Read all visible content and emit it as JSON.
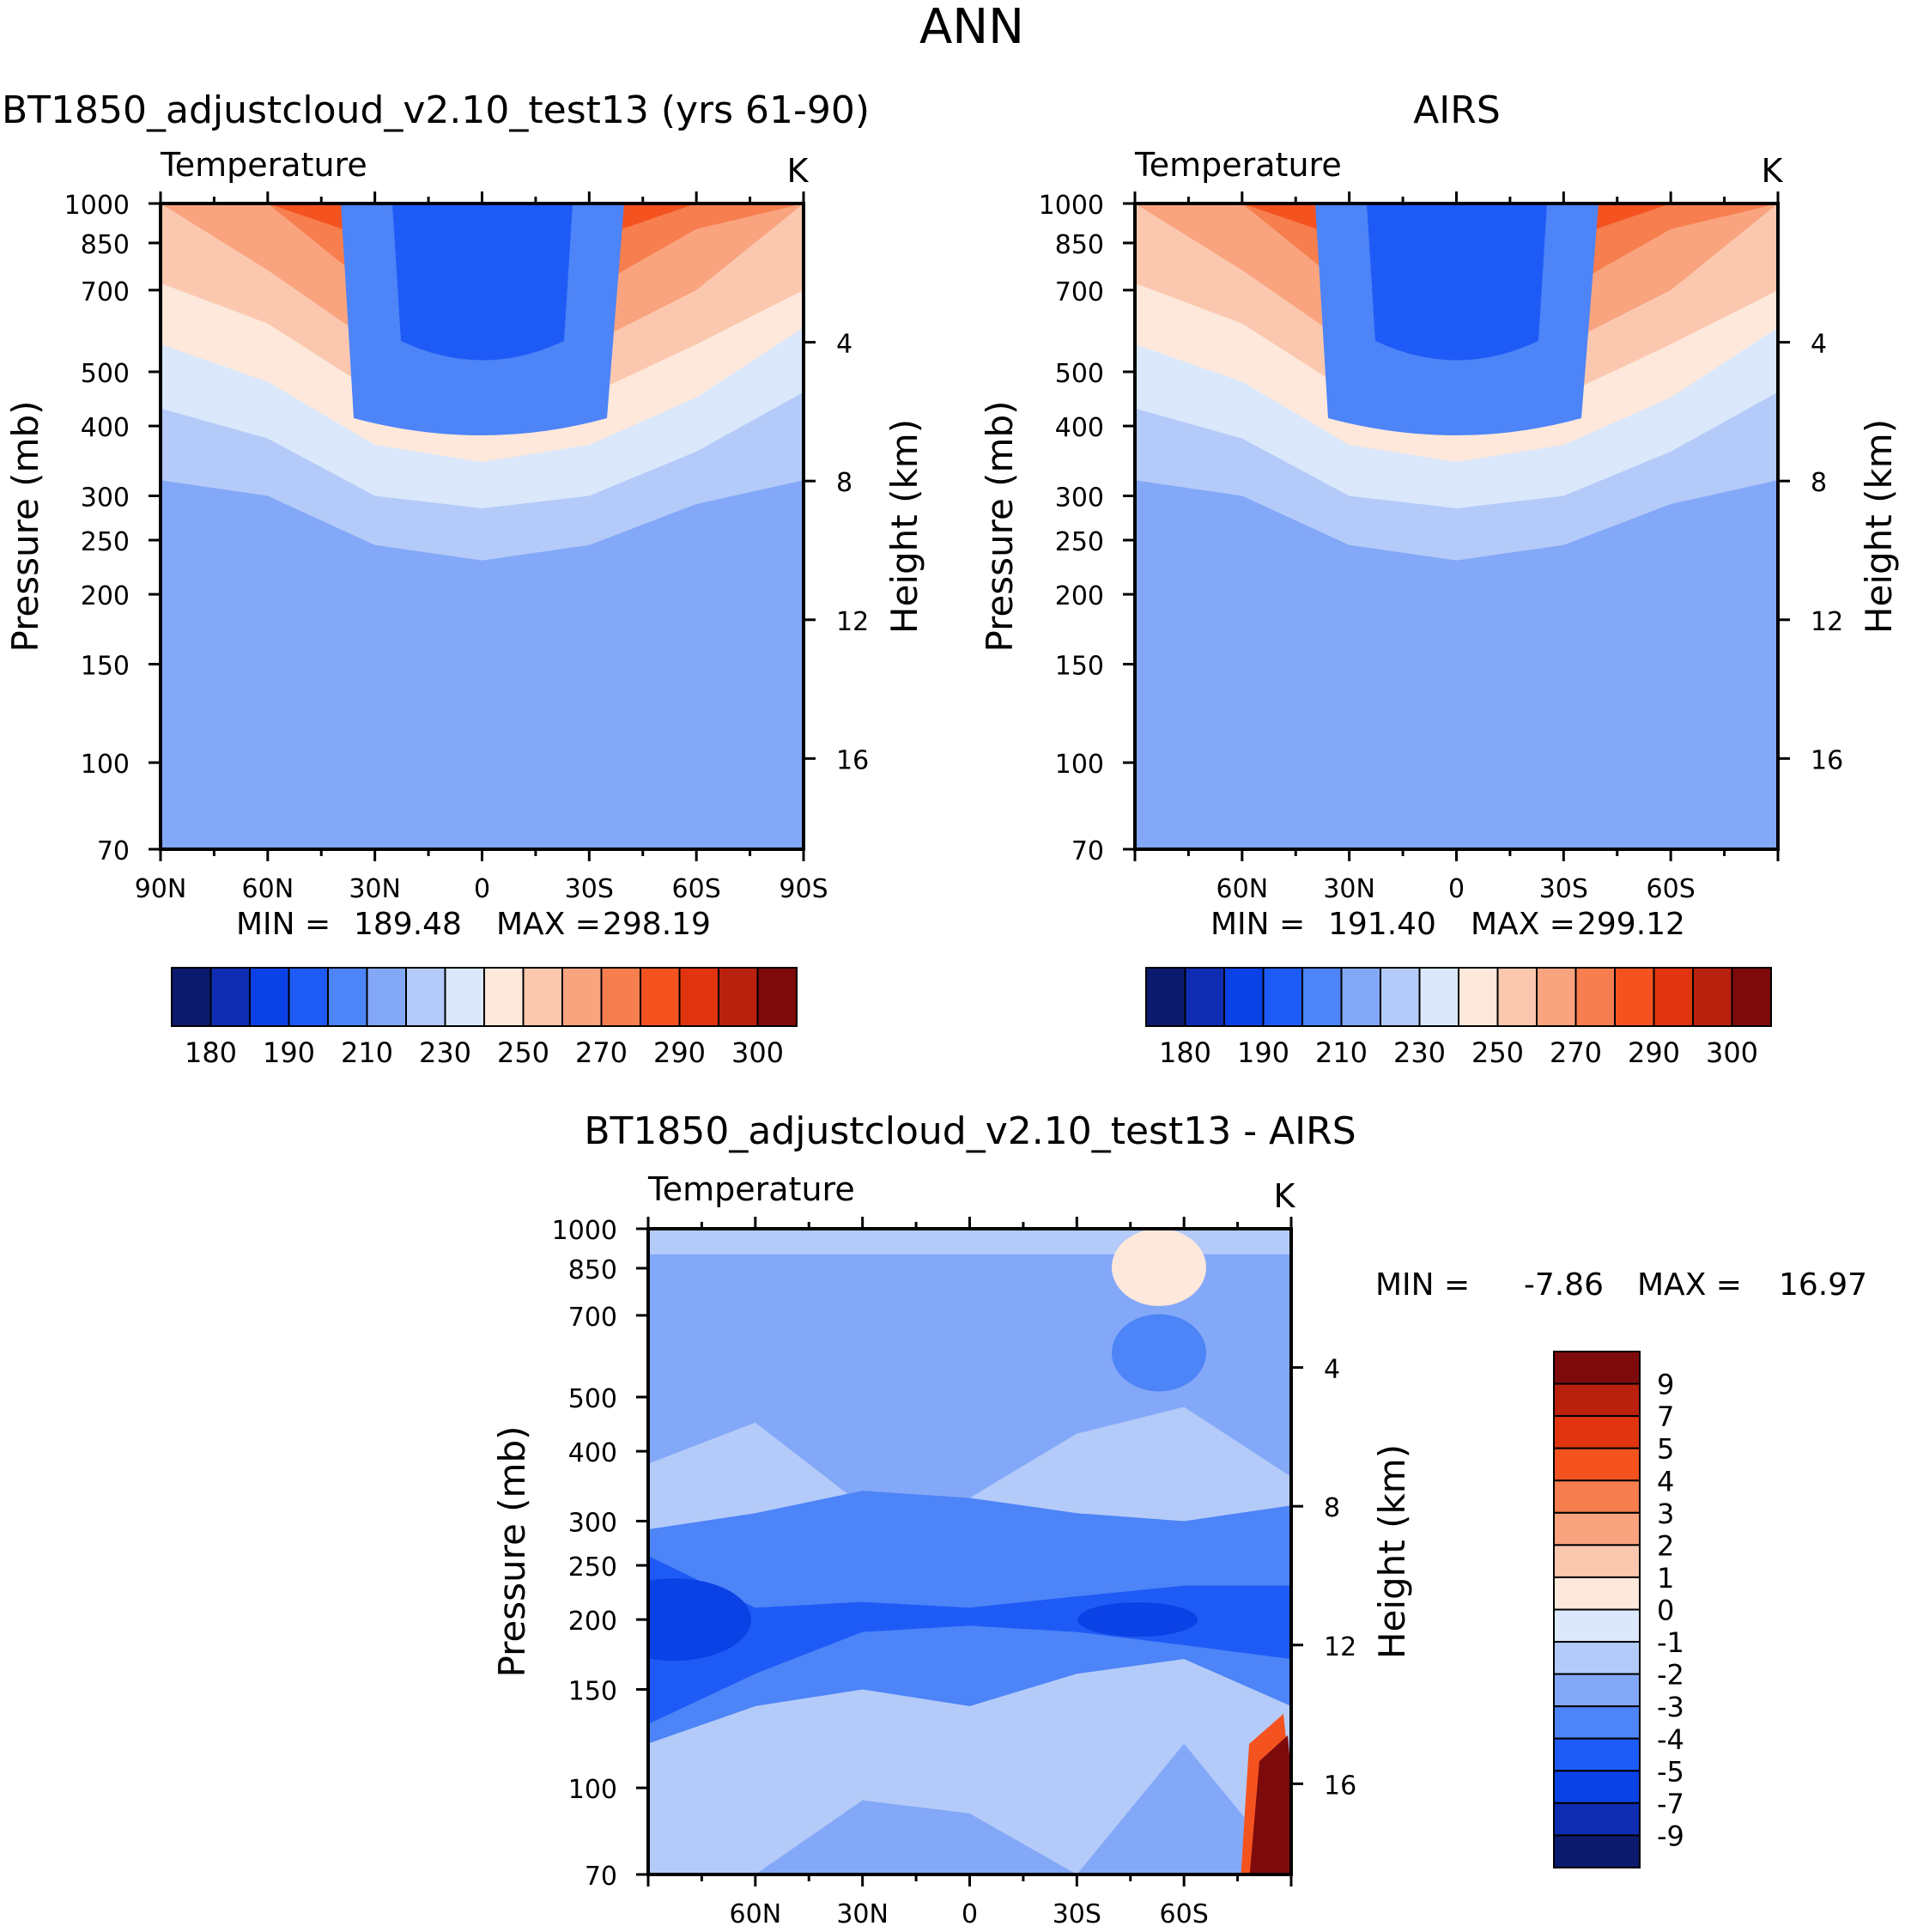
{
  "figure": {
    "title": "ANN"
  },
  "colors": {
    "abs_palette": [
      "#0c1a6e",
      "#0e2db2",
      "#0b42e6",
      "#1e5bf6",
      "#4d84f7",
      "#84a8f8",
      "#b4cbf9",
      "#dbe8fb",
      "#fde8db",
      "#fbc8af",
      "#f9a47f",
      "#f77e4e",
      "#f45320",
      "#e0350e",
      "#b9200d",
      "#7e0b0b"
    ],
    "diff_palette": [
      "#0c1a6e",
      "#0e2db2",
      "#0b42e6",
      "#1e5bf6",
      "#4d84f7",
      "#84a8f8",
      "#b4cbf9",
      "#dbe8fb",
      "#fde8db",
      "#fbc8af",
      "#f9a47f",
      "#f77e4e",
      "#f45320",
      "#e0350e",
      "#b9200d",
      "#7e0b0b"
    ]
  },
  "chart_data": [
    {
      "id": "model",
      "type": "heatmap",
      "title": "BT1850_adjustcloud_v2.10_test13 (yrs 61-90)",
      "left_string": "Temperature",
      "units": "K",
      "ylabel": "Pressure (mb)",
      "right_axis_label": "Height (km)",
      "x_ticks": [
        "90N",
        "60N",
        "30N",
        "0",
        "30S",
        "60S",
        "90S"
      ],
      "y_ticks": [
        "70",
        "100",
        "150",
        "200",
        "250",
        "300",
        "400",
        "500",
        "700",
        "850",
        "1000"
      ],
      "height_ticks": [
        "16",
        "12",
        "8",
        "4"
      ],
      "min_label": "MIN =",
      "min": "189.48",
      "max_label": "MAX =",
      "max": "298.19",
      "colorbar_labels": [
        "180",
        "190",
        "210",
        "230",
        "250",
        "270",
        "290",
        "300"
      ]
    },
    {
      "id": "obs",
      "type": "heatmap",
      "title": "AIRS",
      "left_string": "Temperature",
      "units": "K",
      "ylabel": "Pressure (mb)",
      "right_axis_label": "Height (km)",
      "x_ticks": [
        "60N",
        "30N",
        "0",
        "30S",
        "60S"
      ],
      "y_ticks": [
        "70",
        "100",
        "150",
        "200",
        "250",
        "300",
        "400",
        "500",
        "700",
        "850",
        "1000"
      ],
      "height_ticks": [
        "16",
        "12",
        "8",
        "4"
      ],
      "min_label": "MIN =",
      "min": "191.40",
      "max_label": "MAX =",
      "max": "299.12",
      "colorbar_labels": [
        "180",
        "190",
        "210",
        "230",
        "250",
        "270",
        "290",
        "300"
      ]
    },
    {
      "id": "diff",
      "type": "heatmap",
      "title": "BT1850_adjustcloud_v2.10_test13 - AIRS",
      "left_string": "Temperature",
      "units": "K",
      "ylabel": "Pressure (mb)",
      "right_axis_label": "Height (km)",
      "x_ticks": [
        "60N",
        "30N",
        "0",
        "30S",
        "60S"
      ],
      "y_ticks": [
        "70",
        "100",
        "150",
        "200",
        "250",
        "300",
        "400",
        "500",
        "700",
        "850",
        "1000"
      ],
      "height_ticks": [
        "16",
        "12",
        "8",
        "4"
      ],
      "min_label": "MIN =",
      "min": "-7.86",
      "max_label": "MAX =",
      "max": "16.97",
      "colorbar_labels": [
        "9",
        "7",
        "5",
        "4",
        "3",
        "2",
        "1",
        "0",
        "-1",
        "-2",
        "-3",
        "-4",
        "-5",
        "-7",
        "-9"
      ]
    }
  ]
}
